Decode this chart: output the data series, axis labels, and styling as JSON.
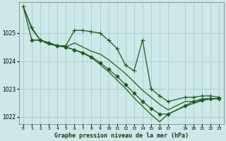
{
  "background_color": "#cce8e8",
  "grid_color": "#aacccc",
  "line_color": "#1e5c1e",
  "xlim": [
    -0.5,
    23.5
  ],
  "ylim": [
    1021.75,
    1026.1
  ],
  "yticks": [
    1022,
    1023,
    1024,
    1025
  ],
  "xticks": [
    0,
    1,
    2,
    3,
    4,
    5,
    6,
    7,
    8,
    9,
    10,
    11,
    12,
    13,
    14,
    15,
    16,
    17,
    19,
    20,
    21,
    22,
    23
  ],
  "xlabel": "Graphe pression niveau de la mer (hPa)",
  "series": [
    {
      "x": [
        0,
        1,
        2,
        3,
        4,
        5,
        6,
        7,
        8,
        9,
        10,
        11,
        12,
        13,
        14,
        15,
        16,
        17,
        19,
        20,
        21,
        22,
        23
      ],
      "y": [
        1025.95,
        1025.2,
        1024.75,
        1024.65,
        1024.55,
        1024.55,
        1025.1,
        1025.1,
        1025.05,
        1025.0,
        1024.75,
        1024.45,
        1023.85,
        1023.65,
        1024.75,
        1023.0,
        1022.75,
        1022.55,
        1022.7,
        1022.7,
        1022.75,
        1022.75,
        1022.7
      ],
      "marker": "+",
      "markersize": 4,
      "linewidth": 0.9
    },
    {
      "x": [
        0,
        1,
        2,
        3,
        4,
        5,
        6,
        7,
        8,
        9,
        10,
        11,
        12,
        13,
        14,
        15,
        16,
        17,
        19,
        20,
        21,
        22,
        23
      ],
      "y": [
        1025.95,
        1025.15,
        1024.75,
        1024.6,
        1024.55,
        1024.5,
        1024.65,
        1024.5,
        1024.35,
        1024.25,
        1024.05,
        1023.8,
        1023.55,
        1023.25,
        1022.95,
        1022.7,
        1022.45,
        1022.25,
        1022.55,
        1022.55,
        1022.65,
        1022.65,
        1022.65
      ],
      "marker": null,
      "markersize": 0,
      "linewidth": 0.9
    },
    {
      "x": [
        1,
        2,
        3,
        4,
        5,
        6,
        7,
        8,
        9,
        10,
        11,
        12,
        13,
        14,
        15,
        16,
        17,
        19,
        20,
        21,
        22,
        23
      ],
      "y": [
        1024.75,
        1024.75,
        1024.65,
        1024.55,
        1024.5,
        1024.4,
        1024.3,
        1024.15,
        1023.95,
        1023.7,
        1023.45,
        1023.15,
        1022.85,
        1022.55,
        1022.3,
        1022.1,
        1022.1,
        1022.4,
        1022.55,
        1022.6,
        1022.65,
        1022.65
      ],
      "marker": "D",
      "markersize": 2.5,
      "linewidth": 0.9
    },
    {
      "x": [
        0,
        1,
        2,
        3,
        4,
        5,
        6,
        7,
        8,
        9,
        10,
        11,
        12,
        13,
        14,
        15,
        16,
        17,
        19,
        20,
        21,
        22,
        23
      ],
      "y": [
        1025.95,
        1024.75,
        1024.75,
        1024.65,
        1024.55,
        1024.5,
        1024.4,
        1024.28,
        1024.12,
        1023.88,
        1023.62,
        1023.32,
        1023.02,
        1022.68,
        1022.38,
        1022.08,
        1021.82,
        1022.1,
        1022.38,
        1022.48,
        1022.58,
        1022.65,
        1022.65
      ],
      "marker": null,
      "markersize": 0,
      "linewidth": 0.9
    }
  ]
}
